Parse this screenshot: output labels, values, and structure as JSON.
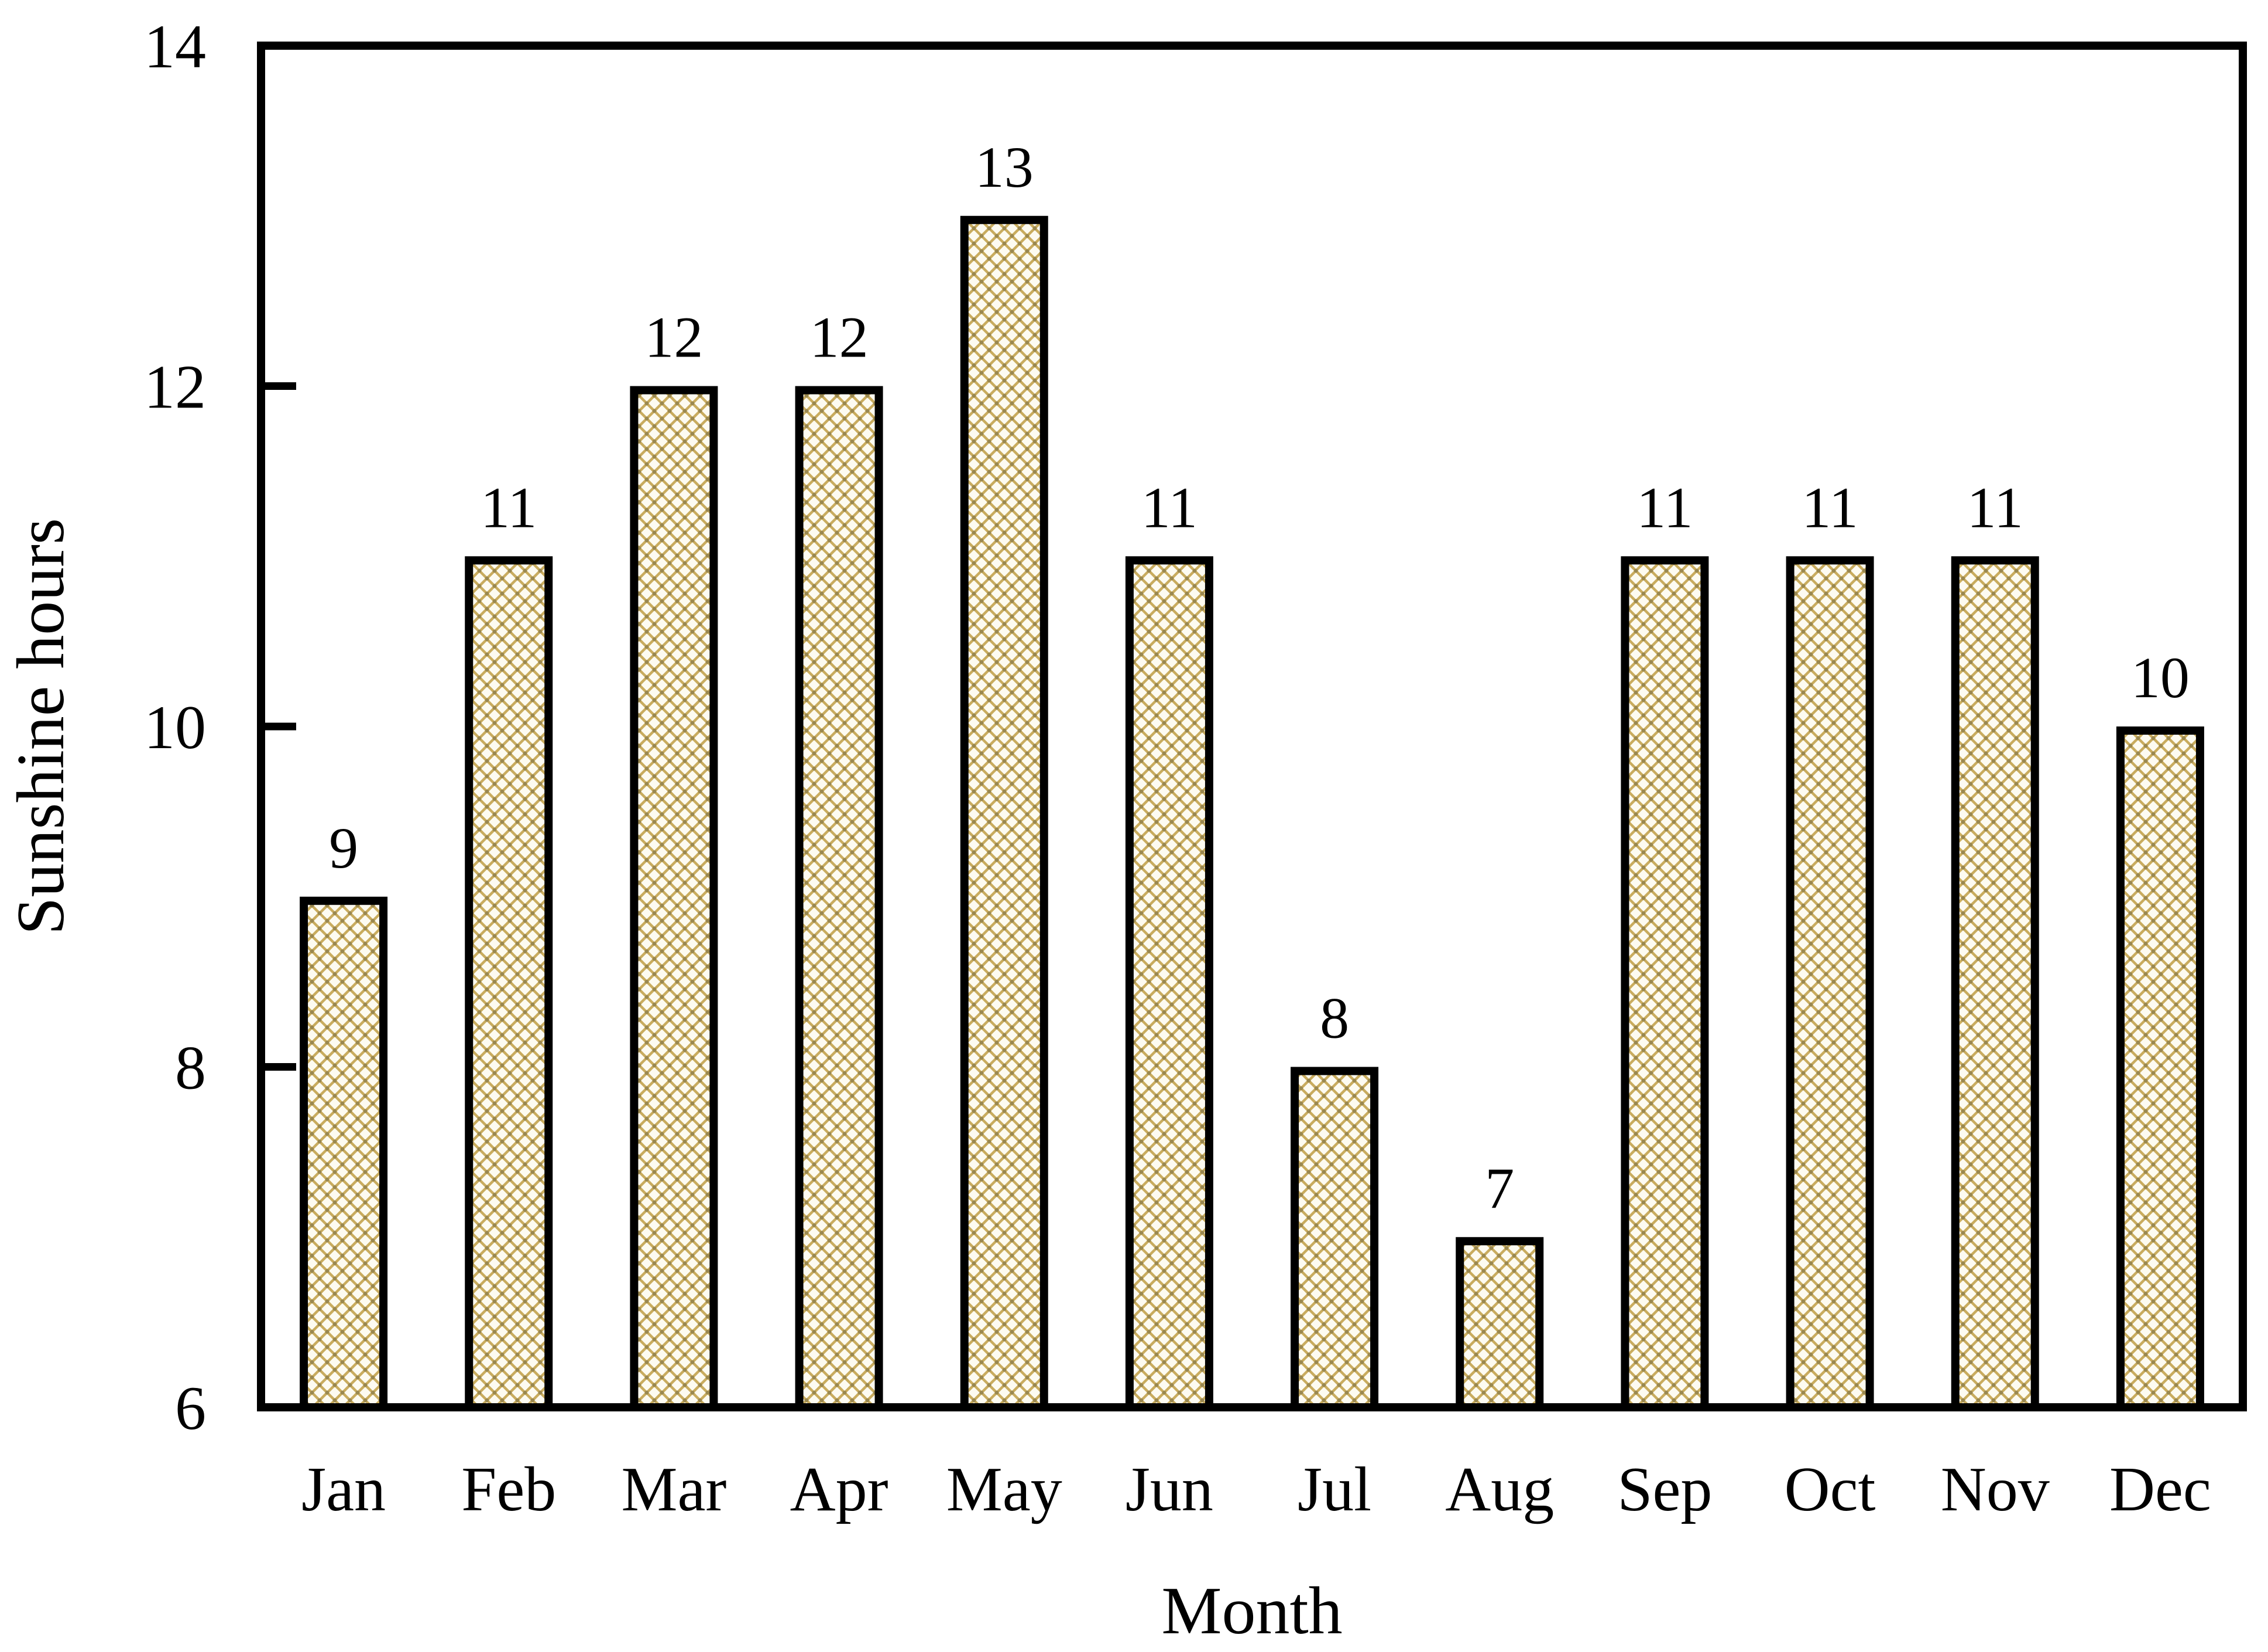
{
  "chart_data": {
    "type": "bar",
    "title": "",
    "categories": [
      "Jan",
      "Feb",
      "Mar",
      "Apr",
      "May",
      "Jun",
      "Jul",
      "Aug",
      "Sep",
      "Oct",
      "Nov",
      "Dec"
    ],
    "values": [
      9,
      11,
      12,
      12,
      13,
      11,
      8,
      7,
      11,
      11,
      11,
      10
    ],
    "bar_value_labels": [
      "9",
      "11",
      "12",
      "12",
      "13",
      "11",
      "8",
      "7",
      "11",
      "11",
      "11",
      "10"
    ],
    "xlabel": "Month",
    "ylabel": "Sunshine hours",
    "ylim": [
      6,
      14
    ],
    "yticks": [
      6,
      8,
      10,
      12,
      14
    ],
    "ytick_labels": [
      "6",
      "8",
      "10",
      "12",
      "14"
    ],
    "grid": false,
    "legend_position": "none",
    "hatch_style": "diagonal-crosshatch",
    "colors": {
      "background": "#FFFFFF",
      "bar_fill": "#FDFBF1",
      "bar_hatch_line": "#C9AC5E",
      "bar_hatch_dot": "#9A8850",
      "bar_border": "#000000",
      "axis_line": "#000000",
      "text": "#000000"
    }
  }
}
